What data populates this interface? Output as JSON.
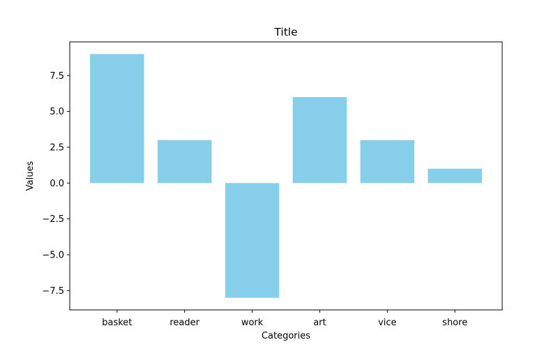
{
  "chart_data": {
    "type": "bar",
    "title": "Title",
    "xlabel": "Categories",
    "ylabel": "Values",
    "categories": [
      "basket",
      "reader",
      "work",
      "art",
      "vice",
      "shore"
    ],
    "values": [
      9,
      3,
      -8,
      6,
      3,
      1
    ],
    "ylim": [
      -8.85,
      9.85
    ],
    "yticks": [
      -7.5,
      -5.0,
      -2.5,
      0.0,
      2.5,
      5.0,
      7.5
    ],
    "ytick_labels": [
      "−7.5",
      "−5.0",
      "−2.5",
      "0.0",
      "2.5",
      "5.0",
      "7.5"
    ],
    "bar_color": "#87CEEB",
    "grid": false,
    "legend": "none"
  }
}
